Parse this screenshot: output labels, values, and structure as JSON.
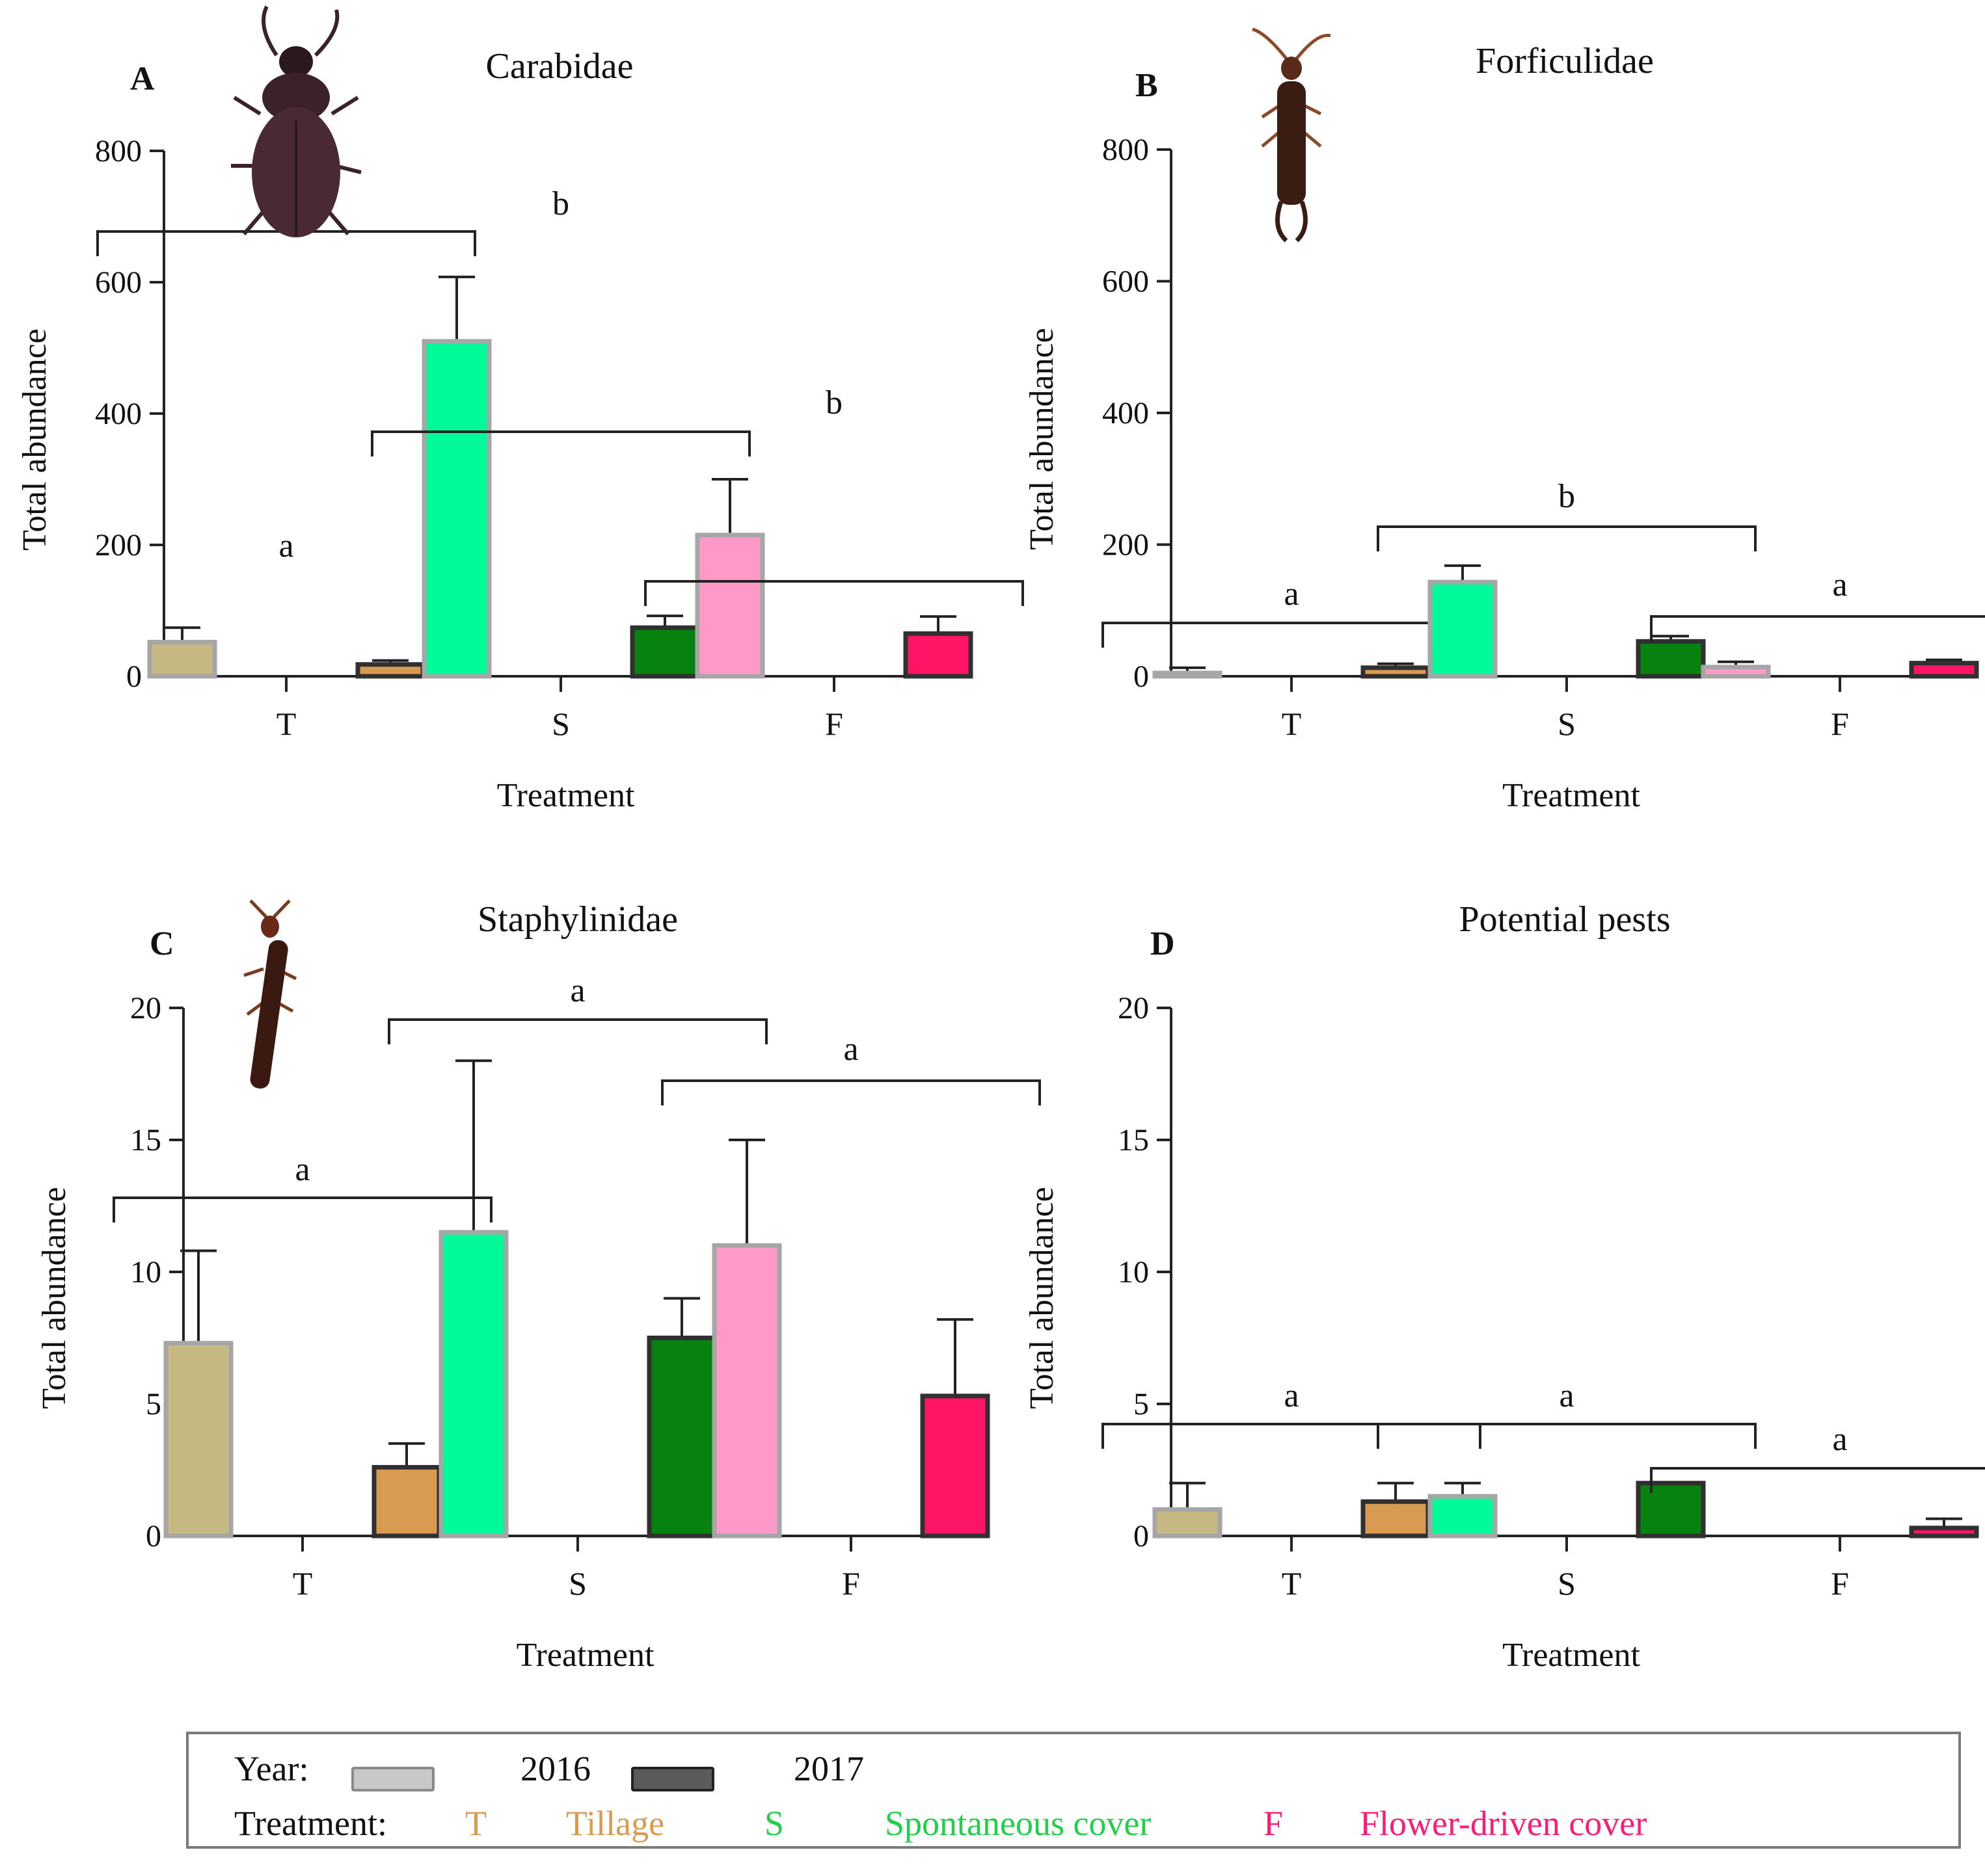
{
  "chart_data": [
    {
      "type": "bar",
      "panel_letter": "A",
      "title": "Carabidae",
      "xlabel": "Treatment",
      "ylabel": "Total abundance",
      "categories": [
        "T",
        "S",
        "F"
      ],
      "ylim": [
        0,
        800
      ],
      "yticks": [
        "0",
        "200",
        "400",
        "600",
        "800"
      ],
      "series": [
        {
          "name": "2016",
          "values": [
            52,
            510,
            215
          ],
          "errors": [
            22,
            98,
            85
          ]
        },
        {
          "name": "2017",
          "values": [
            18,
            74,
            65
          ],
          "errors": [
            6,
            18,
            26
          ]
        }
      ],
      "significance": [
        "a",
        "b",
        "b"
      ],
      "image": "ground-beetle"
    },
    {
      "type": "bar",
      "panel_letter": "B",
      "title": "Forficulidae",
      "xlabel": "Treatment",
      "ylabel": "Total abundance",
      "categories": [
        "T",
        "S",
        "F"
      ],
      "ylim": [
        0,
        800
      ],
      "yticks": [
        "0",
        "200",
        "400",
        "600",
        "800"
      ],
      "series": [
        {
          "name": "2016",
          "values": [
            5,
            143,
            14
          ],
          "errors": [
            8,
            25,
            8
          ]
        },
        {
          "name": "2017",
          "values": [
            13,
            53,
            20
          ],
          "errors": [
            6,
            8,
            5
          ]
        }
      ],
      "significance": [
        "a",
        "b",
        "a"
      ],
      "image": "earwig"
    },
    {
      "type": "bar",
      "panel_letter": "C",
      "title": "Staphylinidae",
      "xlabel": "Treatment",
      "ylabel": "Total abundance",
      "categories": [
        "T",
        "S",
        "F"
      ],
      "ylim": [
        0,
        20
      ],
      "yticks": [
        "0",
        "5",
        "10",
        "15",
        "20"
      ],
      "series": [
        {
          "name": "2016",
          "values": [
            7.3,
            11.5,
            11
          ],
          "errors": [
            3.5,
            6.5,
            4
          ]
        },
        {
          "name": "2017",
          "values": [
            2.6,
            7.5,
            5.3
          ],
          "errors": [
            0.9,
            1.5,
            2.9
          ]
        }
      ],
      "significance": [
        "a",
        "a",
        "a"
      ],
      "image": "rove-beetle"
    },
    {
      "type": "bar",
      "panel_letter": "D",
      "title": "Potential pests",
      "xlabel": "Treatment",
      "ylabel": "Total abundance",
      "categories": [
        "T",
        "S",
        "F"
      ],
      "ylim": [
        0,
        20
      ],
      "yticks": [
        "0",
        "5",
        "10",
        "15",
        "20"
      ],
      "series": [
        {
          "name": "2016",
          "values": [
            1,
            1.5,
            0
          ],
          "errors": [
            1,
            0.5,
            0
          ]
        },
        {
          "name": "2017",
          "values": [
            1.3,
            2,
            0.3
          ],
          "errors": [
            0.7,
            0,
            0.35
          ]
        }
      ],
      "significance": [
        "a",
        "a",
        "a"
      ]
    }
  ],
  "colors": {
    "T": {
      "2016": "#c5b882",
      "2017": "#d99a52"
    },
    "S": {
      "2016": "#00fa9a",
      "2017": "#078210"
    },
    "F": {
      "2016": "#ff9ac8",
      "2017": "#ff1466"
    },
    "outline_2016": "#a6a6a6",
    "outline_2017": "#303030"
  },
  "legend": {
    "year_label": "Year:",
    "year_2016": "2016",
    "year_2017": "2017",
    "treatment_label": "Treatment:",
    "items": [
      {
        "code": "T",
        "name": "Tillage",
        "color": "#d99a52"
      },
      {
        "code": "S",
        "name": "Spontaneous cover",
        "color": "#20d048"
      },
      {
        "code": "F",
        "name": "Flower-driven cover",
        "color": "#ff1a7a"
      }
    ]
  }
}
